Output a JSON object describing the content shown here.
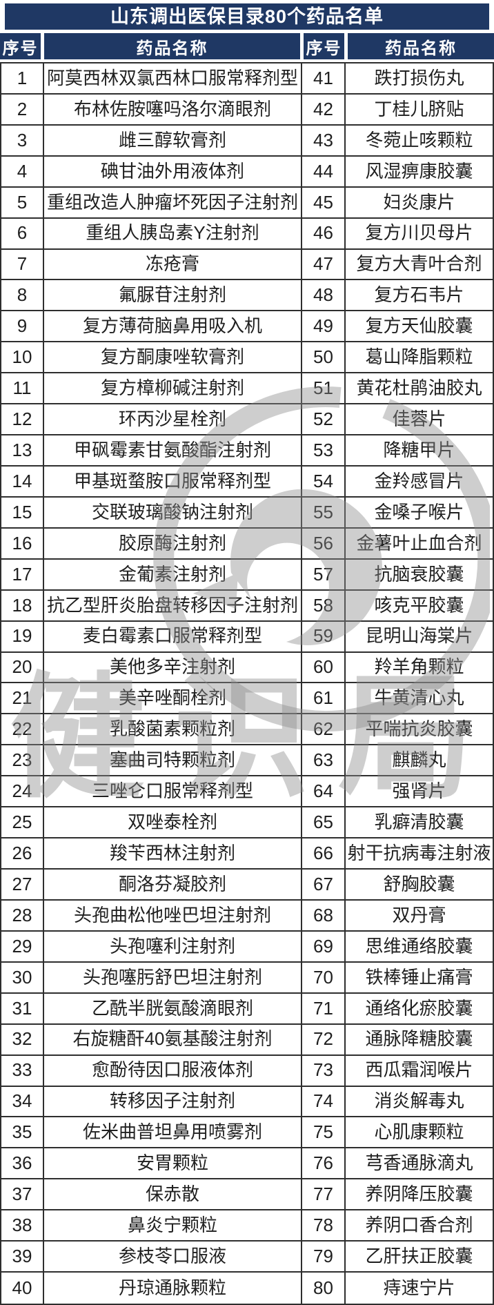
{
  "title": "山东调出医保目录80个药品名单",
  "headers": {
    "no_left": "序号",
    "name_left": "药品名称",
    "no_right": "序号",
    "name_right": "药品名称"
  },
  "watermark": {
    "text": "健识局"
  },
  "colors": {
    "header_bg": "#1f3864",
    "header_text": "#ffffff",
    "body_text": "#1f1f1f",
    "border": "#2e2e2e",
    "watermark": "#8c8c8c"
  },
  "rows": [
    {
      "l_no": "1",
      "l_name": "阿莫西林双氯西林口服常释剂型",
      "r_no": "41",
      "r_name": "跌打损伤丸"
    },
    {
      "l_no": "2",
      "l_name": "布林佐胺噻吗洛尔滴眼剂",
      "r_no": "42",
      "r_name": "丁桂儿脐贴"
    },
    {
      "l_no": "3",
      "l_name": "雌三醇软膏剂",
      "r_no": "43",
      "r_name": "冬菀止咳颗粒"
    },
    {
      "l_no": "4",
      "l_name": "碘甘油外用液体剂",
      "r_no": "44",
      "r_name": "风湿痹康胶囊"
    },
    {
      "l_no": "5",
      "l_name": "重组改造人肿瘤坏死因子注射剂",
      "r_no": "45",
      "r_name": "妇炎康片"
    },
    {
      "l_no": "6",
      "l_name": "重组人胰岛素Y注射剂",
      "r_no": "46",
      "r_name": "复方川贝母片"
    },
    {
      "l_no": "7",
      "l_name": "冻疮膏",
      "r_no": "47",
      "r_name": "复方大青叶合剂"
    },
    {
      "l_no": "8",
      "l_name": "氟脲苷注射剂",
      "r_no": "48",
      "r_name": "复方石韦片"
    },
    {
      "l_no": "9",
      "l_name": "复方薄荷脑鼻用吸入机",
      "r_no": "49",
      "r_name": "复方天仙胶囊"
    },
    {
      "l_no": "10",
      "l_name": "复方酮康唑软膏剂",
      "r_no": "50",
      "r_name": "葛山降脂颗粒"
    },
    {
      "l_no": "11",
      "l_name": "复方樟柳碱注射剂",
      "r_no": "51",
      "r_name": "黄花杜鹃油胶丸"
    },
    {
      "l_no": "12",
      "l_name": "环丙沙星栓剂",
      "r_no": "52",
      "r_name": "佳蓉片"
    },
    {
      "l_no": "13",
      "l_name": "甲砜霉素甘氨酸酯注射剂",
      "r_no": "53",
      "r_name": "降糖甲片"
    },
    {
      "l_no": "14",
      "l_name": "甲基斑蝥胺口服常释剂型",
      "r_no": "54",
      "r_name": "金羚感冒片"
    },
    {
      "l_no": "15",
      "l_name": "交联玻璃酸钠注射剂",
      "r_no": "55",
      "r_name": "金嗓子喉片"
    },
    {
      "l_no": "16",
      "l_name": "胶原酶注射剂",
      "r_no": "56",
      "r_name": "金薯叶止血合剂"
    },
    {
      "l_no": "17",
      "l_name": "金葡素注射剂",
      "r_no": "57",
      "r_name": "抗脑衰胶囊"
    },
    {
      "l_no": "18",
      "l_name": "抗乙型肝炎胎盘转移因子注射剂",
      "r_no": "58",
      "r_name": "咳克平胶囊"
    },
    {
      "l_no": "19",
      "l_name": "麦白霉素口服常释剂型",
      "r_no": "59",
      "r_name": "昆明山海棠片"
    },
    {
      "l_no": "20",
      "l_name": "美他多辛注射剂",
      "r_no": "60",
      "r_name": "羚羊角颗粒"
    },
    {
      "l_no": "21",
      "l_name": "美辛唑酮栓剂",
      "r_no": "61",
      "r_name": "牛黄清心丸"
    },
    {
      "l_no": "22",
      "l_name": "乳酸菌素颗粒剂",
      "r_no": "62",
      "r_name": "平喘抗炎胶囊"
    },
    {
      "l_no": "23",
      "l_name": "塞曲司特颗粒剂",
      "r_no": "63",
      "r_name": "麒麟丸"
    },
    {
      "l_no": "24",
      "l_name": "三唑仑口服常释剂型",
      "r_no": "64",
      "r_name": "强肾片"
    },
    {
      "l_no": "25",
      "l_name": "双唑泰栓剂",
      "r_no": "65",
      "r_name": "乳癖清胶囊"
    },
    {
      "l_no": "26",
      "l_name": "羧苄西林注射剂",
      "r_no": "66",
      "r_name": "射干抗病毒注射液"
    },
    {
      "l_no": "27",
      "l_name": "酮洛芬凝胶剂",
      "r_no": "67",
      "r_name": "舒胸胶囊"
    },
    {
      "l_no": "28",
      "l_name": "头孢曲松他唑巴坦注射剂",
      "r_no": "68",
      "r_name": "双丹膏"
    },
    {
      "l_no": "29",
      "l_name": "头孢噻利注射剂",
      "r_no": "69",
      "r_name": "思维通络胶囊"
    },
    {
      "l_no": "30",
      "l_name": "头孢噻肟舒巴坦注射剂",
      "r_no": "70",
      "r_name": "铁棒锤止痛膏"
    },
    {
      "l_no": "31",
      "l_name": "乙酰半胱氨酸滴眼剂",
      "r_no": "71",
      "r_name": "通络化瘀胶囊"
    },
    {
      "l_no": "32",
      "l_name": "右旋糖酐40氨基酸注射剂",
      "r_no": "72",
      "r_name": "通脉降糖胶囊"
    },
    {
      "l_no": "33",
      "l_name": "愈酚待因口服液体剂",
      "r_no": "73",
      "r_name": "西瓜霜润喉片"
    },
    {
      "l_no": "34",
      "l_name": "转移因子注射剂",
      "r_no": "74",
      "r_name": "消炎解毒丸"
    },
    {
      "l_no": "35",
      "l_name": "佐米曲普坦鼻用喷雾剂",
      "r_no": "75",
      "r_name": "心肌康颗粒"
    },
    {
      "l_no": "36",
      "l_name": "安胃颗粒",
      "r_no": "76",
      "r_name": "芎香通脉滴丸"
    },
    {
      "l_no": "37",
      "l_name": "保赤散",
      "r_no": "77",
      "r_name": "养阴降压胶囊"
    },
    {
      "l_no": "38",
      "l_name": "鼻炎宁颗粒",
      "r_no": "78",
      "r_name": "养阴口香合剂"
    },
    {
      "l_no": "39",
      "l_name": "参枝苓口服液",
      "r_no": "79",
      "r_name": "乙肝扶正胶囊"
    },
    {
      "l_no": "40",
      "l_name": "丹琼通脉颗粒",
      "r_no": "80",
      "r_name": "痔速宁片"
    }
  ]
}
